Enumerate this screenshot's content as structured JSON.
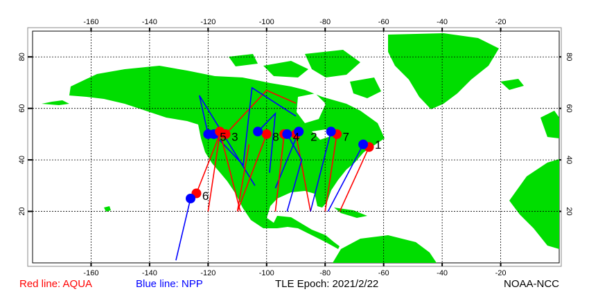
{
  "map": {
    "lon_range": [
      -180,
      0
    ],
    "lat_range": [
      0,
      90
    ],
    "lon_ticks": [
      -160,
      -140,
      -120,
      -100,
      -80,
      -60,
      -40,
      -20
    ],
    "lat_ticks": [
      20,
      40,
      60,
      80
    ],
    "colors": {
      "land": "#00dd00",
      "water": "#ffffff",
      "grid": "#000000",
      "aqua": "#ff0000",
      "npp": "#0000ff"
    }
  },
  "passes": [
    {
      "label": "1",
      "aqua": [
        [
          -65,
          45
        ],
        [
          -75,
          20
        ]
      ],
      "npp": [
        [
          -67,
          46
        ],
        [
          -79,
          20
        ]
      ],
      "label_at": [
        -63,
        46
      ]
    },
    {
      "label": "2",
      "aqua": [
        [
          -90,
          50
        ],
        [
          -85,
          20
        ]
      ],
      "npp": [
        [
          -89,
          51
        ],
        [
          -97,
          29
        ]
      ],
      "label_at": [
        -85,
        49
      ]
    },
    {
      "label": "3",
      "aqua": [
        [
          -114,
          50
        ],
        [
          -100,
          67
        ],
        [
          -90,
          62
        ]
      ],
      "npp": [
        [
          -118,
          50
        ],
        [
          -108,
          38
        ],
        [
          -105,
          68
        ],
        [
          -90,
          57
        ]
      ],
      "label_at": [
        -112,
        49
      ]
    },
    {
      "label": "4",
      "aqua": [
        [
          -94,
          50
        ],
        [
          -97,
          20
        ]
      ],
      "npp": [
        [
          -93,
          50
        ],
        [
          -88,
          40
        ],
        [
          -93,
          20
        ]
      ],
      "label_at": [
        -91,
        49
      ]
    },
    {
      "label": "5",
      "aqua": [
        [
          -116,
          51
        ],
        [
          -109,
          20
        ]
      ],
      "npp": [
        [
          -120,
          50
        ],
        [
          -123,
          65
        ],
        [
          -104,
          30
        ]
      ],
      "label_at": [
        -116,
        49
      ]
    },
    {
      "label": "6",
      "aqua": [
        [
          -124,
          27
        ],
        [
          -116,
          50
        ],
        [
          -120,
          20
        ]
      ],
      "npp": [
        [
          -126,
          25
        ],
        [
          -131,
          1
        ]
      ],
      "label_at": [
        -122,
        26
      ]
    },
    {
      "label": "7",
      "aqua": [
        [
          -76,
          50
        ],
        [
          -80,
          20
        ]
      ],
      "npp": [
        [
          -78,
          51
        ],
        [
          -85,
          20
        ]
      ],
      "label_at": [
        -74,
        49
      ]
    },
    {
      "label": "8",
      "aqua": [
        [
          -100,
          50
        ],
        [
          -110,
          20
        ],
        [
          -106,
          46
        ]
      ],
      "npp": [
        [
          -103,
          51
        ],
        [
          -97,
          58
        ],
        [
          -99,
          35
        ]
      ],
      "label_at": [
        -98,
        49
      ]
    }
  ],
  "footer": {
    "aqua_label": "Red line: AQUA",
    "npp_label": "Blue line: NPP",
    "epoch_label": "TLE Epoch: 2021/2/22",
    "credit": "NOAA-NCC"
  }
}
